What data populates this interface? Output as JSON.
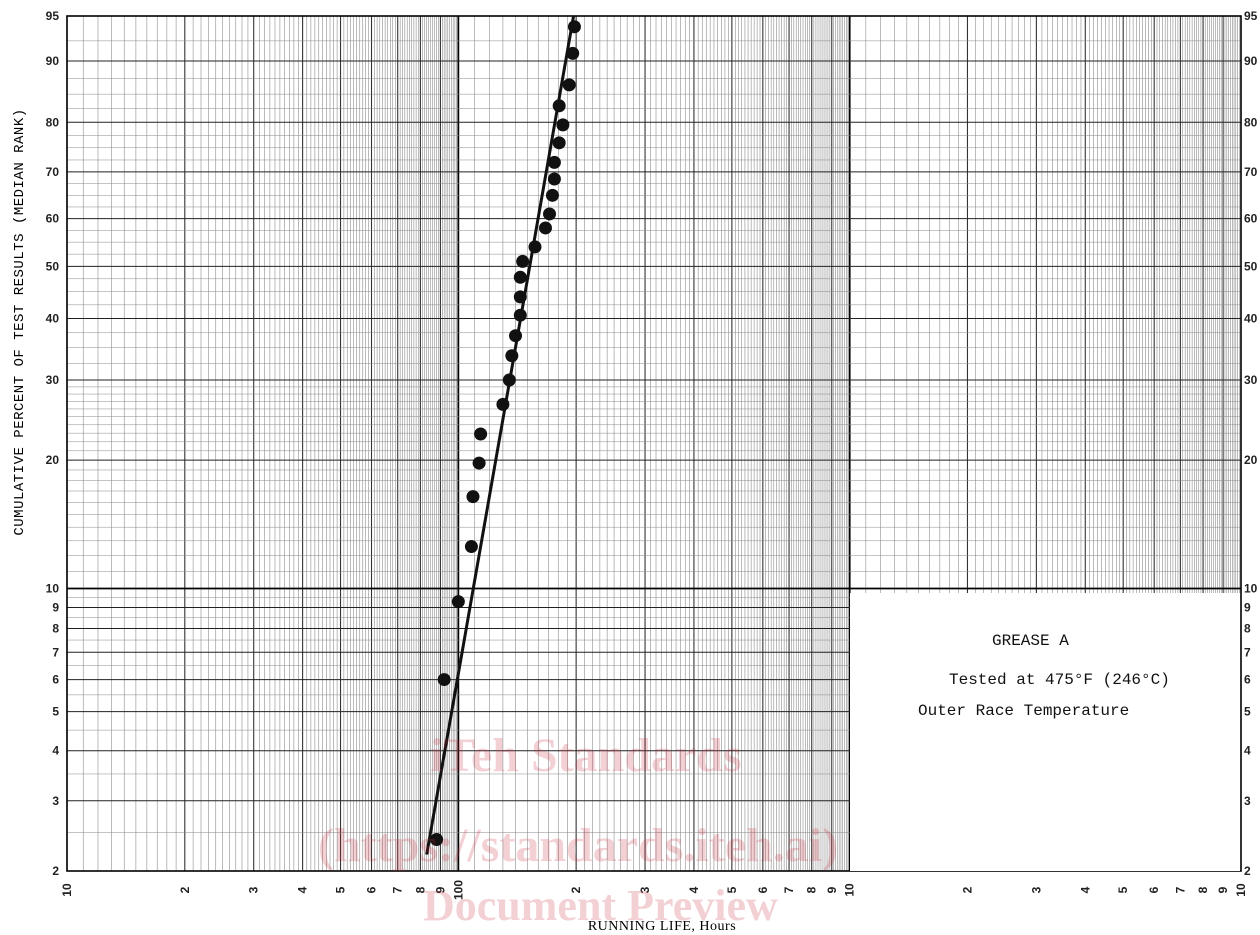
{
  "chart_data": {
    "type": "scatter",
    "xscale": "log",
    "yscale": "weibull-probability",
    "xlabel": "RUNNING LIFE, Hours",
    "ylabel": "CUMULATIVE PERCENT OF TEST RESULTS (MEDIAN RANK)",
    "xlim": [
      10,
      10000
    ],
    "ylim": [
      2,
      95
    ],
    "grid": true,
    "x_ticks": [
      {
        "value": 10,
        "label": "10"
      },
      {
        "value": 20,
        "label": "2"
      },
      {
        "value": 30,
        "label": "3"
      },
      {
        "value": 40,
        "label": "4"
      },
      {
        "value": 50,
        "label": "5"
      },
      {
        "value": 60,
        "label": "6"
      },
      {
        "value": 70,
        "label": "7"
      },
      {
        "value": 80,
        "label": "8"
      },
      {
        "value": 90,
        "label": "9"
      },
      {
        "value": 100,
        "label": "100"
      },
      {
        "value": 200,
        "label": "2"
      },
      {
        "value": 300,
        "label": "3"
      },
      {
        "value": 400,
        "label": "4"
      },
      {
        "value": 500,
        "label": "5"
      },
      {
        "value": 600,
        "label": "6"
      },
      {
        "value": 700,
        "label": "7"
      },
      {
        "value": 800,
        "label": "8"
      },
      {
        "value": 900,
        "label": "9"
      },
      {
        "value": 1000,
        "label": "10"
      },
      {
        "value": 2000,
        "label": "2"
      },
      {
        "value": 3000,
        "label": "3"
      },
      {
        "value": 4000,
        "label": "4"
      },
      {
        "value": 5000,
        "label": "5"
      },
      {
        "value": 6000,
        "label": "6"
      },
      {
        "value": 7000,
        "label": "7"
      },
      {
        "value": 8000,
        "label": "8"
      },
      {
        "value": 9000,
        "label": "9"
      },
      {
        "value": 10000,
        "label": "10"
      }
    ],
    "y_ticks": [
      {
        "value": 2,
        "label": "2"
      },
      {
        "value": 3,
        "label": "3"
      },
      {
        "value": 4,
        "label": "4"
      },
      {
        "value": 5,
        "label": "5"
      },
      {
        "value": 6,
        "label": "6"
      },
      {
        "value": 7,
        "label": "7"
      },
      {
        "value": 8,
        "label": "8"
      },
      {
        "value": 9,
        "label": "9"
      },
      {
        "value": 10,
        "label": "10"
      },
      {
        "value": 20,
        "label": "20"
      },
      {
        "value": 30,
        "label": "30"
      },
      {
        "value": 40,
        "label": "40"
      },
      {
        "value": 50,
        "label": "50"
      },
      {
        "value": 60,
        "label": "60"
      },
      {
        "value": 70,
        "label": "70"
      },
      {
        "value": 80,
        "label": "80"
      },
      {
        "value": 90,
        "label": "90"
      },
      {
        "value": 95,
        "label": "95"
      }
    ],
    "points": [
      {
        "x": 88,
        "y": 2.4
      },
      {
        "x": 92,
        "y": 6.0
      },
      {
        "x": 100,
        "y": 9.3
      },
      {
        "x": 108,
        "y": 12.6
      },
      {
        "x": 109,
        "y": 16.5
      },
      {
        "x": 113,
        "y": 19.7
      },
      {
        "x": 114,
        "y": 22.9
      },
      {
        "x": 130,
        "y": 26.6
      },
      {
        "x": 135,
        "y": 30.0
      },
      {
        "x": 137,
        "y": 33.7
      },
      {
        "x": 140,
        "y": 37.0
      },
      {
        "x": 144,
        "y": 40.6
      },
      {
        "x": 144,
        "y": 44.0
      },
      {
        "x": 144,
        "y": 47.8
      },
      {
        "x": 146,
        "y": 51.0
      },
      {
        "x": 157,
        "y": 54.0
      },
      {
        "x": 167,
        "y": 58.0
      },
      {
        "x": 171,
        "y": 61.0
      },
      {
        "x": 174,
        "y": 65.0
      },
      {
        "x": 176,
        "y": 68.5
      },
      {
        "x": 176,
        "y": 72.0
      },
      {
        "x": 181,
        "y": 76.0
      },
      {
        "x": 185,
        "y": 79.5
      },
      {
        "x": 181,
        "y": 83.0
      },
      {
        "x": 192,
        "y": 86.5
      },
      {
        "x": 196,
        "y": 91.0
      },
      {
        "x": 198,
        "y": 94.0
      }
    ],
    "fit_line": [
      {
        "x": 83,
        "y": 2.2
      },
      {
        "x": 197,
        "y": 95.0
      }
    ]
  },
  "legend": {
    "line1": "GREASE A",
    "line2": "Tested at 475°F (246°C)",
    "line3": "Outer Race Temperature"
  },
  "watermark": {
    "line1": "iTeh Standards",
    "line2": "(https://standards.iteh.ai)",
    "line3": "Document Preview"
  }
}
